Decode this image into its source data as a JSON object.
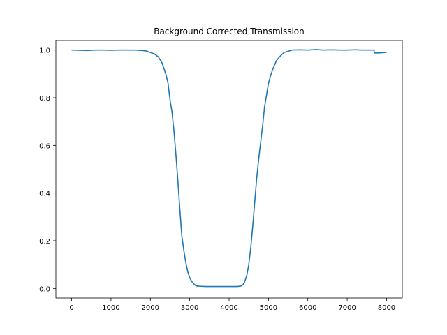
{
  "chart_data": {
    "type": "line",
    "title": "Background Corrected Transmission",
    "xlabel": "",
    "ylabel": "",
    "xlim": [
      -400,
      8400
    ],
    "ylim": [
      -0.04,
      1.04
    ],
    "xticks": [
      0,
      1000,
      2000,
      3000,
      4000,
      5000,
      6000,
      7000,
      8000
    ],
    "xtick_labels": [
      "0",
      "1000",
      "2000",
      "3000",
      "4000",
      "5000",
      "6000",
      "7000",
      "8000"
    ],
    "yticks": [
      0.0,
      0.2,
      0.4,
      0.6,
      0.8,
      1.0
    ],
    "ytick_labels": [
      "0.0",
      "0.2",
      "0.4",
      "0.6",
      "0.8",
      "1.0"
    ],
    "grid": false,
    "legend": "none",
    "series": [
      {
        "color": "#1f77b4",
        "x": [
          0,
          200,
          400,
          600,
          800,
          1000,
          1200,
          1400,
          1600,
          1800,
          1900,
          2000,
          2100,
          2200,
          2300,
          2400,
          2450,
          2500,
          2550,
          2600,
          2650,
          2700,
          2750,
          2800,
          2850,
          2900,
          2950,
          3000,
          3050,
          3100,
          3150,
          3200,
          3300,
          3400,
          3500,
          3600,
          3700,
          3800,
          3900,
          4000,
          4100,
          4200,
          4300,
          4350,
          4400,
          4450,
          4500,
          4550,
          4600,
          4650,
          4700,
          4750,
          4800,
          4850,
          4900,
          4950,
          5000,
          5050,
          5100,
          5150,
          5200,
          5300,
          5400,
          5500,
          5600,
          5800,
          6000,
          6200,
          6400,
          6600,
          6800,
          7000,
          7200,
          7400,
          7600,
          7680,
          7690,
          7800,
          8000
        ],
        "y": [
          1.0,
          0.999,
          0.998,
          1.0,
          1.0,
          0.999,
          1.0,
          1.0,
          1.0,
          0.998,
          0.996,
          0.99,
          0.984,
          0.972,
          0.945,
          0.895,
          0.86,
          0.79,
          0.74,
          0.66,
          0.56,
          0.45,
          0.33,
          0.22,
          0.16,
          0.11,
          0.07,
          0.045,
          0.03,
          0.02,
          0.012,
          0.01,
          0.009,
          0.008,
          0.008,
          0.008,
          0.008,
          0.008,
          0.008,
          0.008,
          0.008,
          0.008,
          0.01,
          0.015,
          0.03,
          0.055,
          0.1,
          0.17,
          0.26,
          0.36,
          0.46,
          0.54,
          0.61,
          0.68,
          0.76,
          0.81,
          0.86,
          0.89,
          0.915,
          0.935,
          0.955,
          0.975,
          0.99,
          0.995,
          1.0,
          1.001,
          1.0,
          1.002,
          1.0,
          1.001,
          1.0,
          1.0,
          1.001,
          1.0,
          1.0,
          1.0,
          0.988,
          0.988,
          0.99
        ]
      }
    ]
  }
}
